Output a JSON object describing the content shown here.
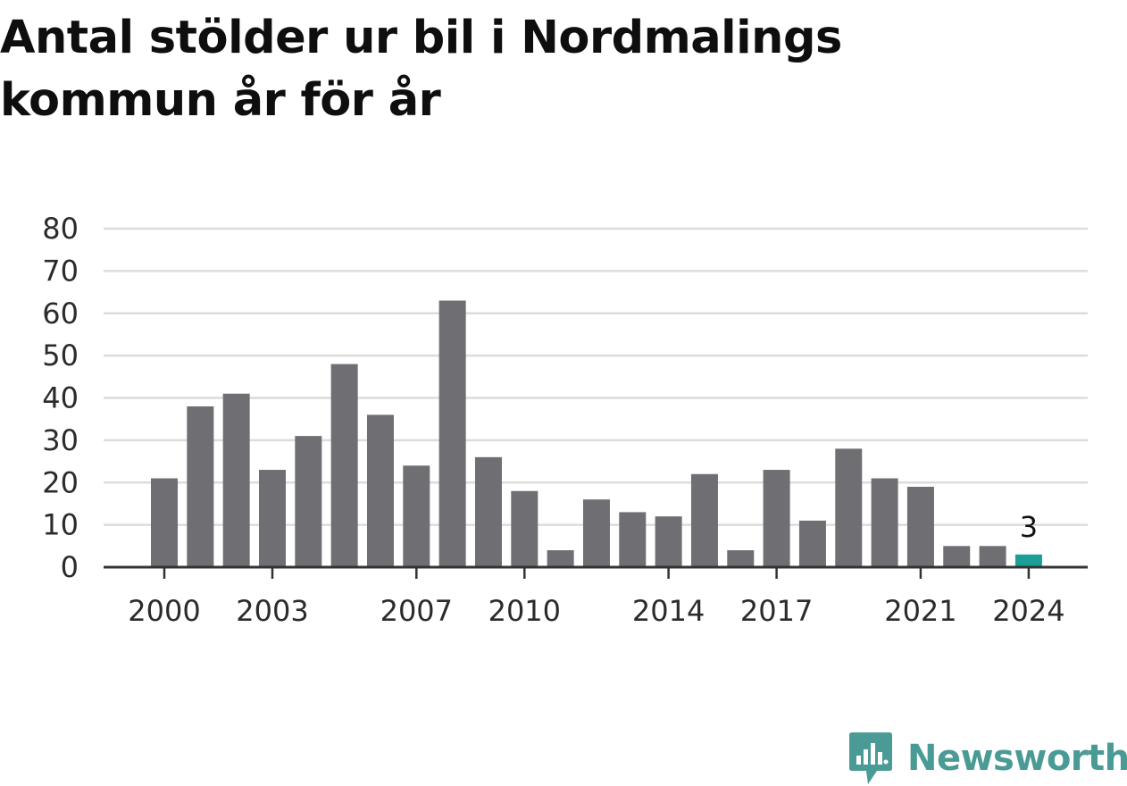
{
  "chart_data": {
    "type": "bar",
    "title": "Antal stölder ur bil i Nordmalings kommun år för år",
    "xlabel": "",
    "ylabel": "",
    "x": [
      2000,
      2001,
      2002,
      2003,
      2004,
      2005,
      2006,
      2007,
      2008,
      2009,
      2010,
      2011,
      2012,
      2013,
      2014,
      2015,
      2016,
      2017,
      2018,
      2019,
      2020,
      2021,
      2022,
      2023,
      2024
    ],
    "values": [
      21,
      38,
      41,
      23,
      31,
      48,
      36,
      24,
      63,
      26,
      18,
      4,
      16,
      13,
      12,
      22,
      4,
      23,
      11,
      28,
      21,
      19,
      5,
      5,
      3
    ],
    "ylim": [
      0,
      80
    ],
    "yticks": [
      0,
      10,
      20,
      30,
      40,
      50,
      60,
      70,
      80
    ],
    "xticks": [
      2000,
      2003,
      2007,
      2010,
      2014,
      2017,
      2021,
      2024
    ],
    "highlight_year": 2024,
    "highlight_label": "3",
    "grid": true,
    "colors": {
      "bar": "#6f6e73",
      "highlight": "#1a9e96",
      "grid": "#dcdcdc",
      "axis": "#333333"
    }
  },
  "brand": {
    "name": "Newsworthy",
    "icon": "newsworthy-logo-icon",
    "color": "#4a9a95"
  }
}
